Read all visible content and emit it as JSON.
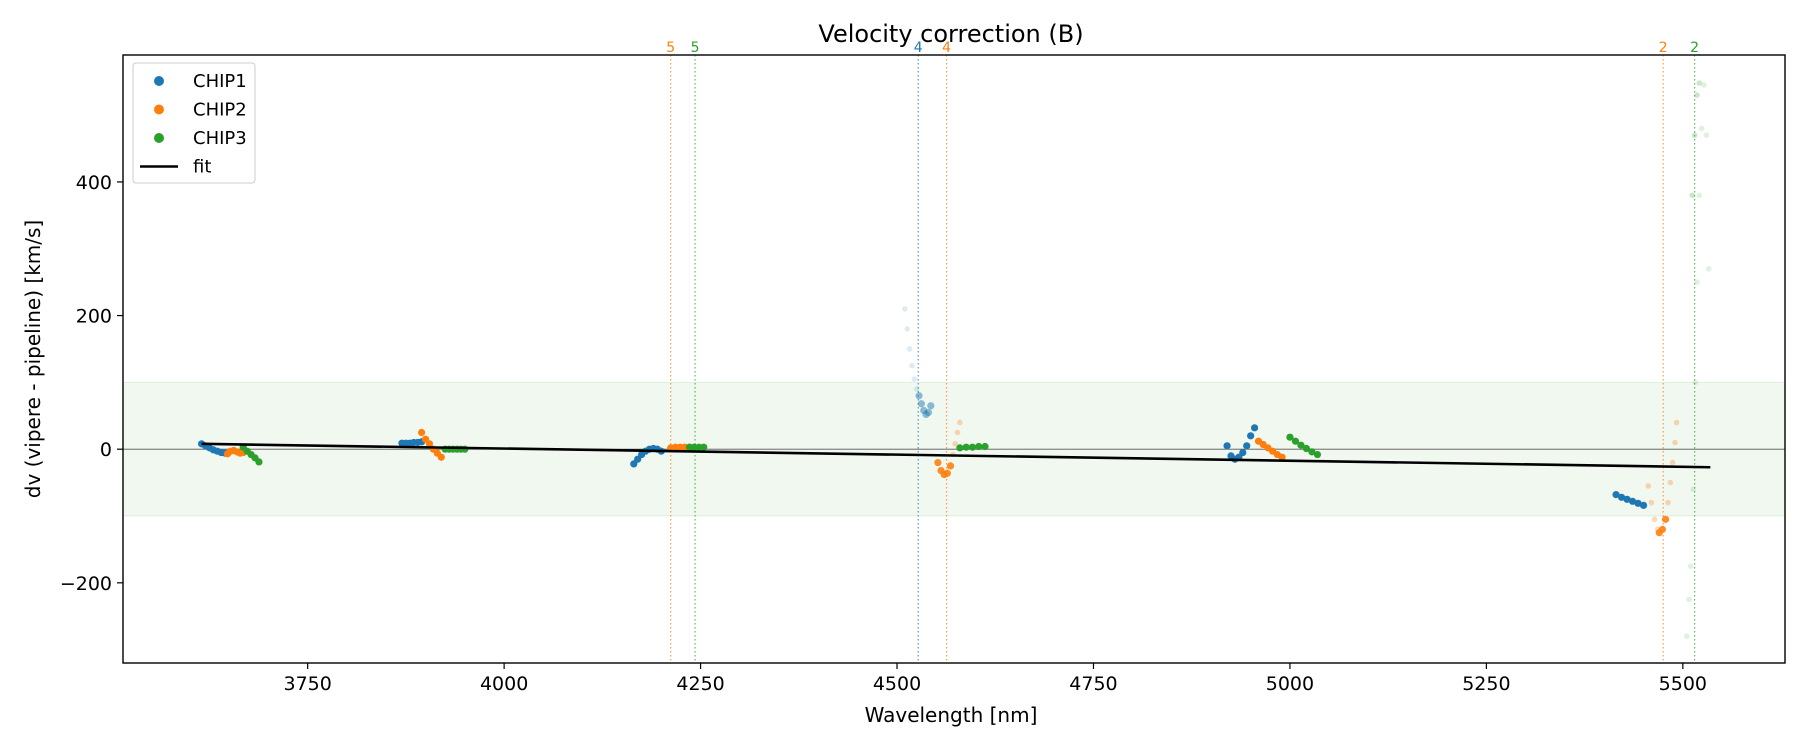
{
  "chart_data": {
    "type": "scatter",
    "title": "Velocity correction (B)",
    "xlabel": "Wavelength [nm]",
    "ylabel": "dv (vipere - pipeline) [km/s]",
    "xlim": [
      3515,
      5630
    ],
    "ylim": [
      -320,
      590
    ],
    "xticks": [
      3750,
      4000,
      4250,
      4500,
      4750,
      5000,
      5250,
      5500
    ],
    "yticks": [
      -200,
      0,
      200,
      400
    ],
    "xtick_labels": [
      "3750",
      "4000",
      "4250",
      "4500",
      "4750",
      "5000",
      "5250",
      "5500"
    ],
    "ytick_labels": [
      "−200",
      "0",
      "200",
      "400"
    ],
    "band": {
      "y_min": -100,
      "y_max": 100,
      "color": "#2ca02c"
    },
    "zero_line": 0,
    "legend": {
      "position": "top-left",
      "entries": [
        {
          "label": "CHIP1",
          "color": "#1f77b4",
          "kind": "marker"
        },
        {
          "label": "CHIP2",
          "color": "#ff7f0e",
          "kind": "marker"
        },
        {
          "label": "CHIP3",
          "color": "#2ca02c",
          "kind": "marker"
        },
        {
          "label": "fit",
          "color": "#000000",
          "kind": "line"
        }
      ]
    },
    "fit": {
      "x": [
        3615,
        5535
      ],
      "y": [
        8,
        -27
      ],
      "color": "#000000"
    },
    "vlines": [
      {
        "x": 4212,
        "label": "5",
        "color": "#ff7f0e"
      },
      {
        "x": 4243,
        "label": "5",
        "color": "#2ca02c"
      },
      {
        "x": 4527,
        "label": "4",
        "color": "#1f77b4"
      },
      {
        "x": 4563,
        "label": "4",
        "color": "#ff7f0e"
      },
      {
        "x": 5475,
        "label": "2",
        "color": "#ff7f0e"
      },
      {
        "x": 5515,
        "label": "2",
        "color": "#2ca02c"
      }
    ],
    "series": [
      {
        "name": "CHIP1",
        "color": "#1f77b4",
        "segments": [
          {
            "x": [
              3615,
              3620,
              3625,
              3630,
              3635,
              3640,
              3645
            ],
            "y": [
              8,
              5,
              2,
              -1,
              -3,
              -5,
              -6
            ],
            "alpha": 1
          },
          {
            "x": [
              3870,
              3875,
              3880,
              3885,
              3890,
              3895
            ],
            "y": [
              9,
              9,
              9,
              10,
              10,
              11
            ],
            "alpha": 1
          },
          {
            "x": [
              4165,
              4170,
              4175,
              4180,
              4185,
              4190,
              4195,
              4200
            ],
            "y": [
              -22,
              -15,
              -8,
              -3,
              0,
              1,
              0,
              -3
            ],
            "alpha": 1
          },
          {
            "x": [
              4510,
              4513,
              4516,
              4519,
              4522,
              4525
            ],
            "y": [
              210,
              180,
              150,
              125,
              105,
              90
            ],
            "alpha": 0.15
          },
          {
            "x": [
              4528,
              4531,
              4534,
              4537,
              4540,
              4543
            ],
            "y": [
              80,
              68,
              58,
              52,
              55,
              65
            ],
            "alpha": 0.5
          },
          {
            "x": [
              4920,
              4925,
              4930,
              4935,
              4940,
              4945,
              4950,
              4955
            ],
            "y": [
              5,
              -10,
              -15,
              -12,
              -5,
              5,
              20,
              32
            ],
            "alpha": 1
          },
          {
            "x": [
              5415,
              5422,
              5429,
              5436,
              5443,
              5450
            ],
            "y": [
              -68,
              -72,
              -75,
              -78,
              -81,
              -84
            ],
            "alpha": 1
          }
        ]
      },
      {
        "name": "CHIP2",
        "color": "#ff7f0e",
        "segments": [
          {
            "x": [
              3648,
              3652,
              3656,
              3660,
              3664,
              3668
            ],
            "y": [
              -7,
              -3,
              -2,
              -4,
              -6,
              -5
            ],
            "alpha": 1
          },
          {
            "x": [
              3895,
              3900,
              3905,
              3910,
              3915,
              3920
            ],
            "y": [
              25,
              15,
              8,
              0,
              -6,
              -12
            ],
            "alpha": 1
          },
          {
            "x": [
              4212,
              4218,
              4224,
              4230,
              4236
            ],
            "y": [
              2,
              3,
              3,
              3,
              3
            ],
            "alpha": 1
          },
          {
            "x": [
              4552,
              4556,
              4560,
              4564,
              4568
            ],
            "y": [
              -20,
              -32,
              -38,
              -36,
              -25
            ],
            "alpha": 0.9
          },
          {
            "x": [
              4571,
              4574,
              4577,
              4580
            ],
            "y": [
              -8,
              8,
              25,
              40
            ],
            "alpha": 0.3
          },
          {
            "x": [
              4960,
              4966,
              4972,
              4978,
              4984,
              4990
            ],
            "y": [
              12,
              7,
              2,
              -3,
              -8,
              -12
            ],
            "alpha": 1
          },
          {
            "x": [
              5456,
              5460,
              5464,
              5468
            ],
            "y": [
              -55,
              -80,
              -105,
              -120
            ],
            "alpha": 0.3
          },
          {
            "x": [
              5470,
              5474,
              5478
            ],
            "y": [
              -125,
              -120,
              -105
            ],
            "alpha": 0.9
          },
          {
            "x": [
              5481,
              5484,
              5487,
              5490,
              5492
            ],
            "y": [
              -80,
              -50,
              -20,
              10,
              40
            ],
            "alpha": 0.3
          }
        ]
      },
      {
        "name": "CHIP3",
        "color": "#2ca02c",
        "segments": [
          {
            "x": [
              3668,
              3673,
              3678,
              3683,
              3688
            ],
            "y": [
              3,
              -3,
              -8,
              -13,
              -19
            ],
            "alpha": 1
          },
          {
            "x": [
              3925,
              3930,
              3935,
              3940,
              3945,
              3950
            ],
            "y": [
              0,
              0,
              0,
              0,
              0,
              0
            ],
            "alpha": 1
          },
          {
            "x": [
              4236,
              4242,
              4248,
              4254
            ],
            "y": [
              3,
              3,
              3,
              3
            ],
            "alpha": 1
          },
          {
            "x": [
              4580,
              4588,
              4596,
              4604,
              4612
            ],
            "y": [
              2,
              3,
              3,
              4,
              4
            ],
            "alpha": 1
          },
          {
            "x": [
              5000,
              5007,
              5014,
              5021,
              5028,
              5035
            ],
            "y": [
              18,
              12,
              6,
              1,
              -4,
              -8
            ],
            "alpha": 1
          },
          {
            "x": [
              5505,
              5508,
              5510,
              5513,
              5516,
              5518,
              5521,
              5524,
              5527,
              5530,
              5533
            ],
            "y": [
              -280,
              -225,
              -175,
              -60,
              100,
              250,
              380,
              480,
              545,
              470,
              270
            ],
            "alpha": 0.15
          },
          {
            "x": [
              5512,
              5515,
              5518,
              5521
            ],
            "y": [
              380,
              470,
              530,
              548
            ],
            "alpha": 0.25
          }
        ]
      }
    ]
  }
}
